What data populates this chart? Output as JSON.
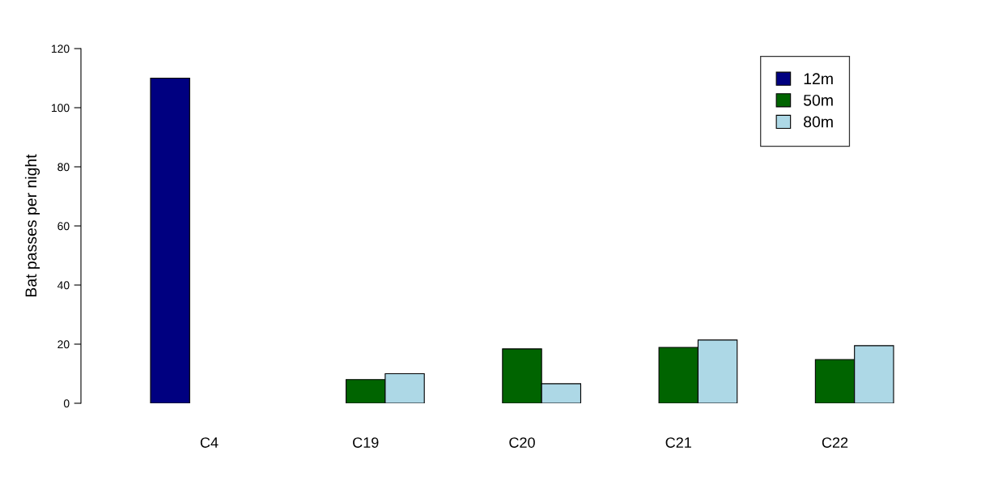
{
  "chart_data": {
    "type": "bar",
    "ylabel": "Bat passes per night",
    "categories": [
      "C4",
      "C19",
      "C20",
      "C21",
      "C22"
    ],
    "series": [
      {
        "name": "12m",
        "color": "#000080",
        "values": [
          110,
          null,
          null,
          null,
          null
        ]
      },
      {
        "name": "50m",
        "color": "#006400",
        "values": [
          null,
          8,
          18.4,
          18.9,
          14.8
        ]
      },
      {
        "name": "80m",
        "color": "#add8e6",
        "values": [
          null,
          10,
          6.6,
          21.4,
          19.5
        ]
      }
    ],
    "ylim": [
      0,
      120
    ],
    "yticks": [
      0,
      20,
      40,
      60,
      80,
      100,
      120
    ],
    "grid": false,
    "legend": "top right"
  }
}
